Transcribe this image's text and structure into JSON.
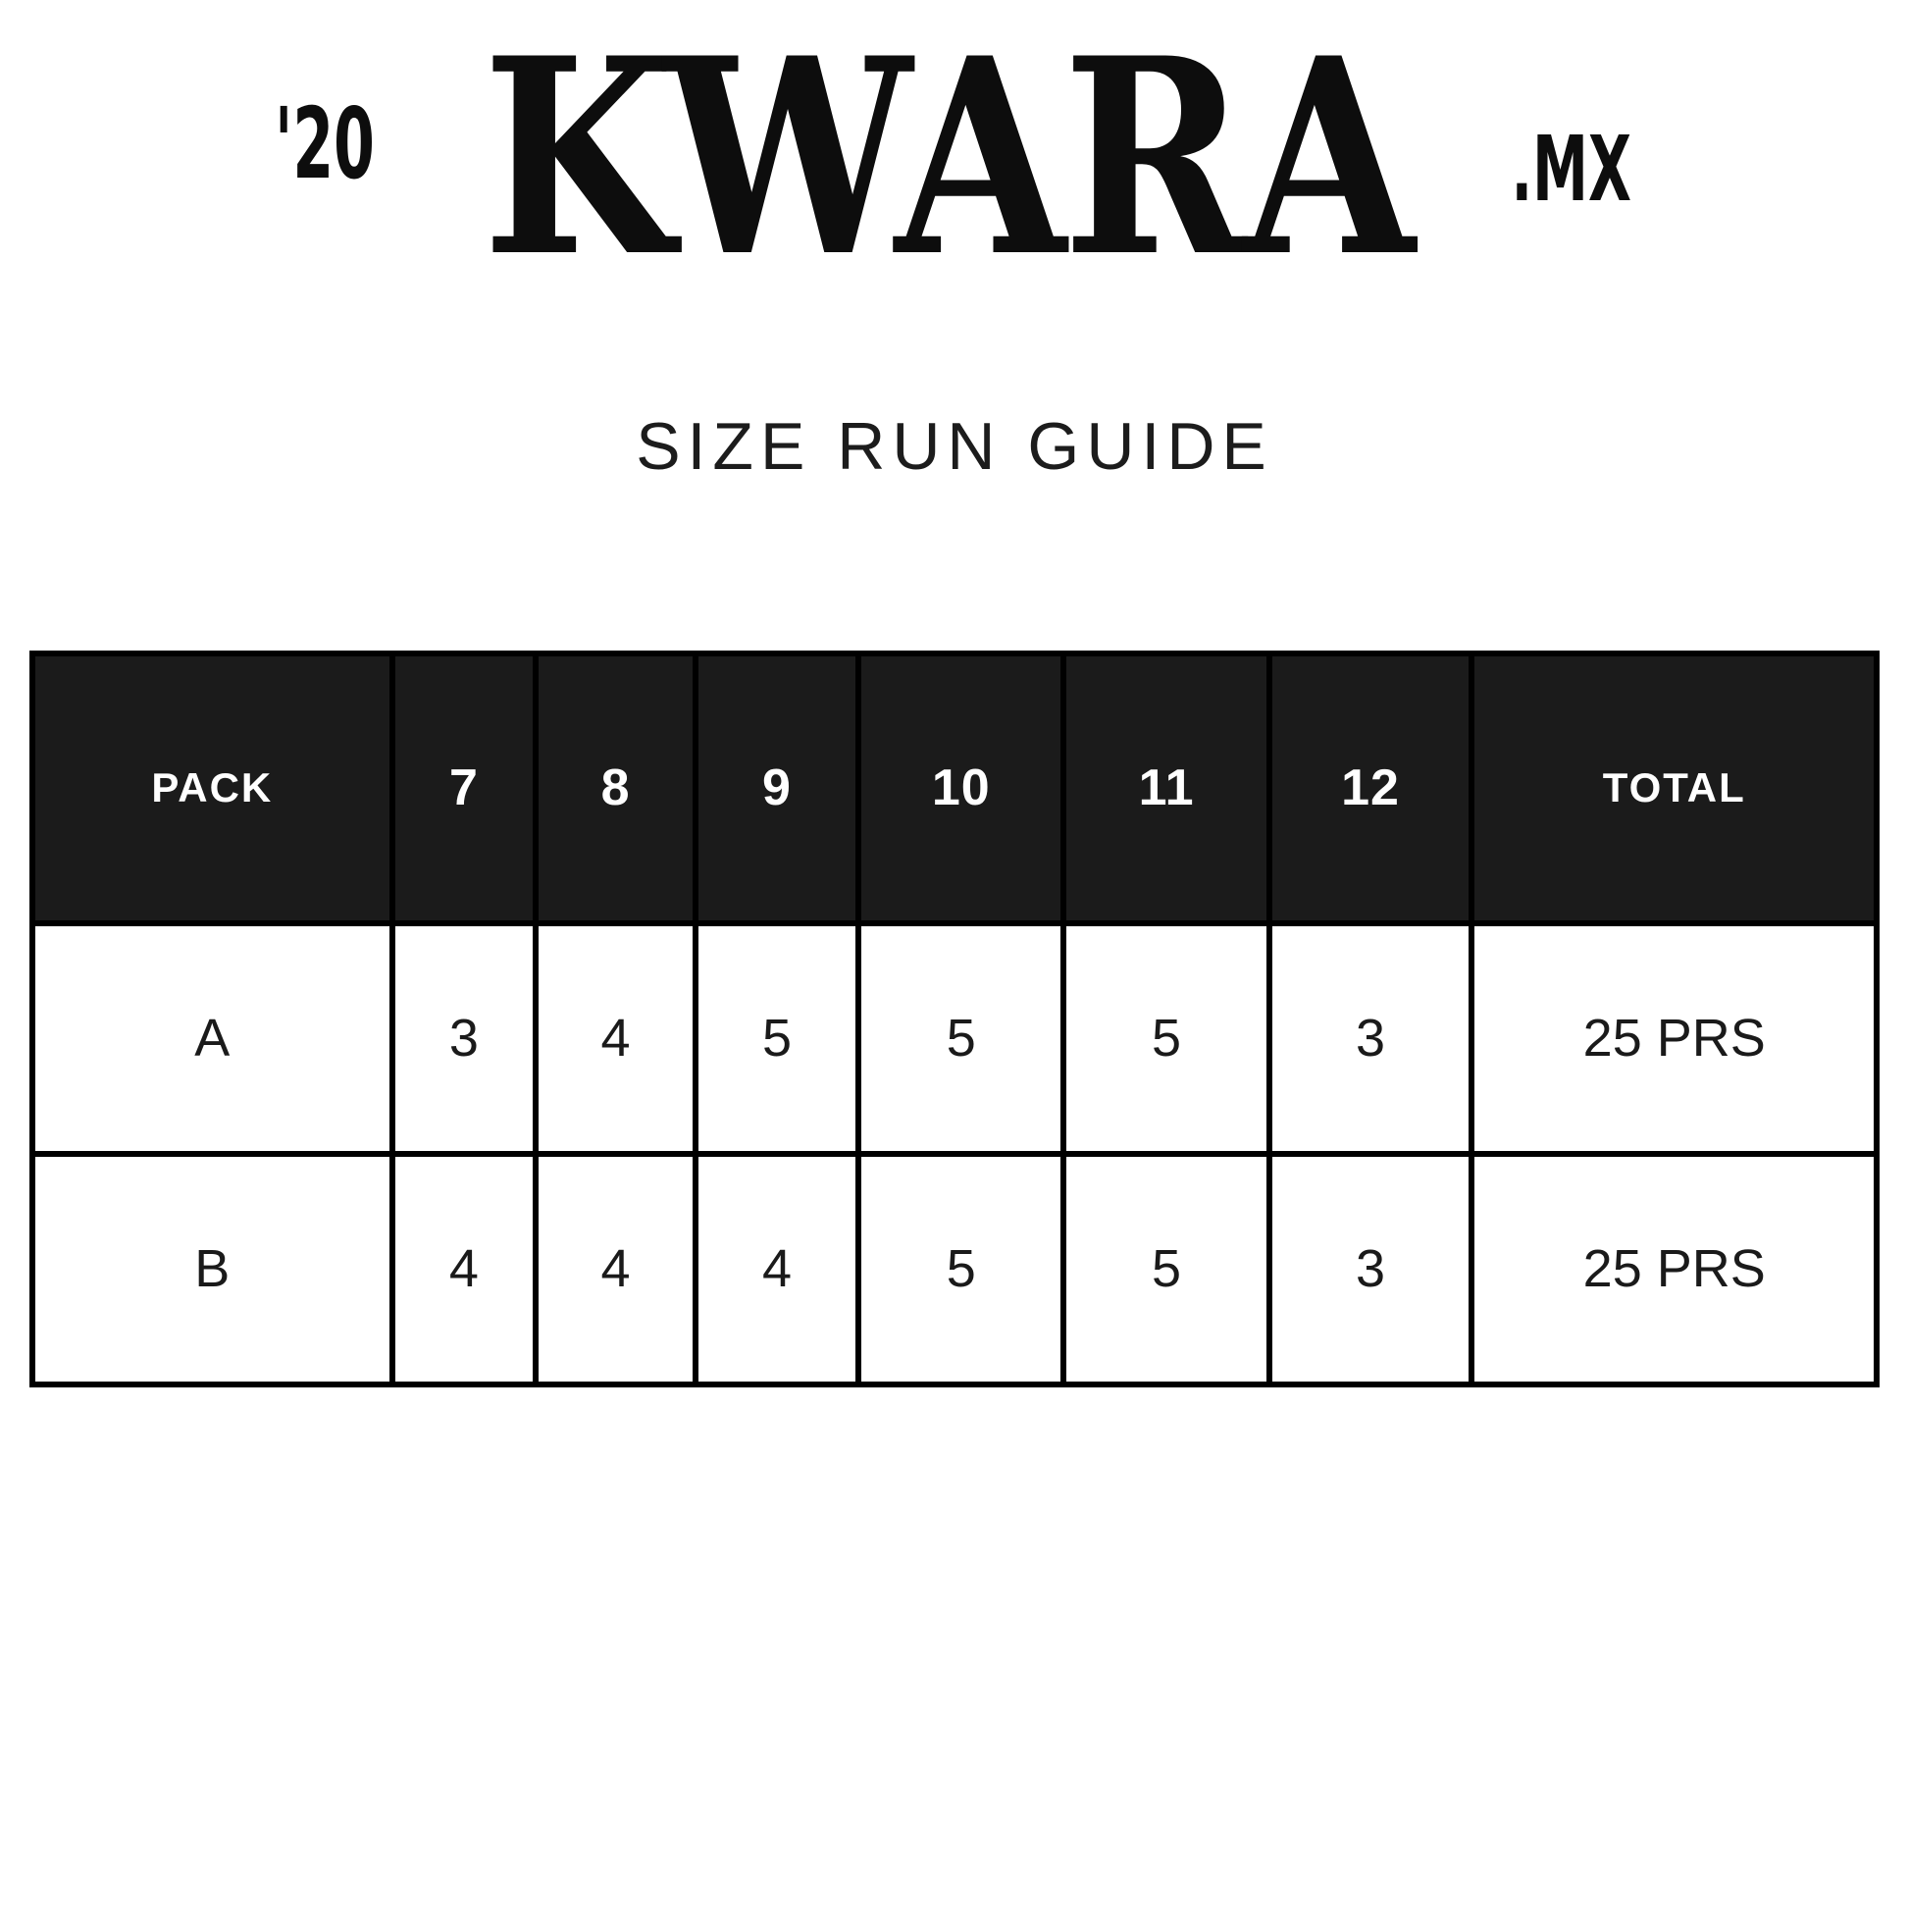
{
  "logo": {
    "year": "'20",
    "brand": "KWARA",
    "suffix": ".MX"
  },
  "title": "SIZE RUN GUIDE",
  "table": {
    "headers": [
      "PACK",
      "7",
      "8",
      "9",
      "10",
      "11",
      "12",
      "TOTAL"
    ],
    "rows": [
      {
        "pack": "A",
        "sizes": [
          "3",
          "4",
          "5",
          "5",
          "5",
          "3"
        ],
        "total": "25 PRS"
      },
      {
        "pack": "B",
        "sizes": [
          "4",
          "4",
          "4",
          "5",
          "5",
          "3"
        ],
        "total": "25 PRS"
      }
    ]
  },
  "colors": {
    "header_bg": "#1b1b1b",
    "header_text": "#ffffff",
    "border": "#000000",
    "body_text": "#1c1c1c",
    "page_bg": "#ffffff"
  }
}
